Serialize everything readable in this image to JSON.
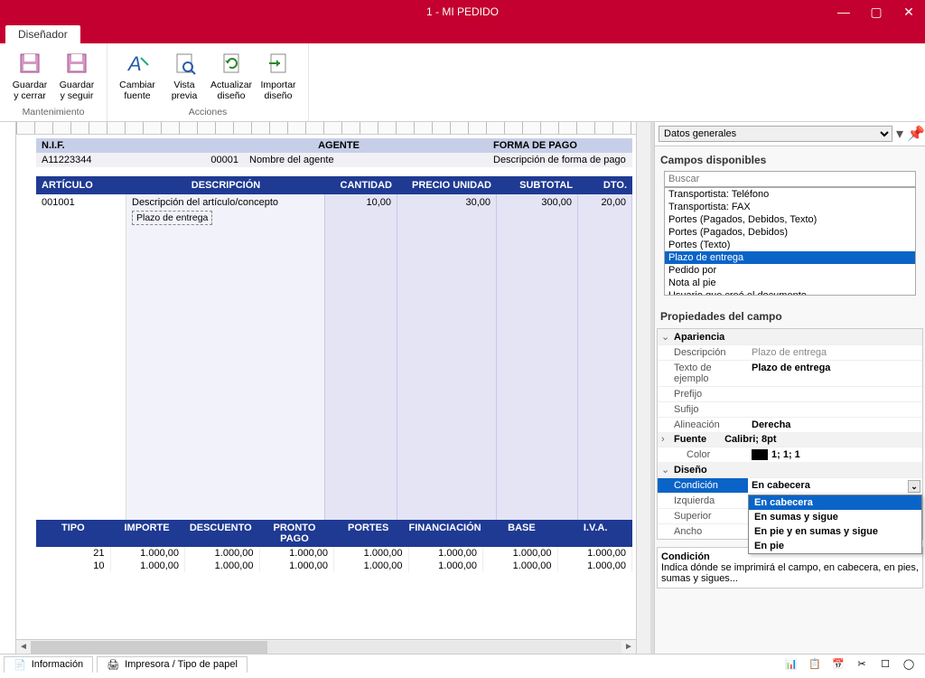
{
  "window": {
    "title": "1 - MI PEDIDO"
  },
  "tab": {
    "label": "Diseñador"
  },
  "ribbon": {
    "groups": [
      {
        "name": "Mantenimiento",
        "buttons": [
          {
            "label": "Guardar\ny cerrar",
            "icon": "save-close"
          },
          {
            "label": "Guardar\ny seguir",
            "icon": "save"
          }
        ]
      },
      {
        "name": "Acciones",
        "buttons": [
          {
            "label": "Cambiar\nfuente",
            "icon": "font"
          },
          {
            "label": "Vista\nprevia",
            "icon": "preview"
          },
          {
            "label": "Actualizar\ndiseño",
            "icon": "refresh-design"
          },
          {
            "label": "Importar\ndiseño",
            "icon": "import-design"
          }
        ]
      }
    ]
  },
  "report": {
    "header_labels": {
      "nif": "N.I.F.",
      "agente": "AGENTE",
      "forma": "FORMA DE PAGO"
    },
    "header_values": {
      "nif": "A11223344",
      "agente_code": "00001",
      "agente_name": "Nombre del agente",
      "forma": "Descripción de forma de pago"
    },
    "cols": {
      "art": "ARTÍCULO",
      "desc": "DESCRIPCIÓN",
      "cant": "CANTIDAD",
      "pu": "PRECIO UNIDAD",
      "sub": "SUBTOTAL",
      "dto": "DTO."
    },
    "row": {
      "art": "001001",
      "desc": "Descripción del artículo/concepto",
      "plazo": "Plazo de entrega",
      "cant": "10,00",
      "pu": "30,00",
      "sub": "300,00",
      "dto": "20,00"
    },
    "footer_cols": [
      "TIPO",
      "IMPORTE",
      "DESCUENTO",
      "PRONTO PAGO",
      "PORTES",
      "FINANCIACIÓN",
      "BASE",
      "I.V.A."
    ],
    "footer_rows": [
      [
        "21",
        "1.000,00",
        "1.000,00",
        "1.000,00",
        "1.000,00",
        "1.000,00",
        "1.000,00",
        "1.000,00"
      ],
      [
        "10",
        "1.000,00",
        "1.000,00",
        "1.000,00",
        "1.000,00",
        "1.000,00",
        "1.000,00",
        "1.000,00"
      ]
    ]
  },
  "side": {
    "combo": "Datos generales",
    "campos_title": "Campos disponibles",
    "search_ph": "Buscar",
    "fields": [
      "Transportista: Teléfono",
      "Transportista: FAX",
      "Portes (Pagados, Debidos, Texto)",
      "Portes (Pagados, Debidos)",
      "Portes (Texto)",
      "Plazo de entrega",
      "Pedido por",
      "Nota al pie",
      "Usuario que creó el documento"
    ],
    "selected_field_index": 5,
    "props_title": "Propiedades del campo",
    "sections": {
      "apariencia": "Apariencia",
      "fuente": "Fuente",
      "color": "Color",
      "diseno": "Diseño"
    },
    "props": {
      "descripcion_l": "Descripción",
      "descripcion_v": "Plazo de entrega",
      "texto_l": "Texto de ejemplo",
      "texto_v": "Plazo de entrega",
      "prefijo_l": "Prefijo",
      "prefijo_v": "",
      "sufijo_l": "Sufijo",
      "sufijo_v": "",
      "alin_l": "Alineación",
      "alin_v": "Derecha",
      "fuente_v": "Calibri; 8pt",
      "color_v": "1; 1; 1",
      "condicion_l": "Condición",
      "condicion_v": "En cabecera",
      "izq_l": "Izquierda",
      "sup_l": "Superior",
      "ancho_l": "Ancho"
    },
    "dd_options": [
      "En cabecera",
      "En sumas y sigue",
      "En pie y en sumas y sigue",
      "En pie"
    ],
    "help": {
      "title": "Condición",
      "text": "Indica dónde se imprimirá el campo, en cabecera, en pies, sumas y sigues..."
    }
  },
  "status": {
    "info": "Información",
    "printer": "Impresora / Tipo de papel"
  },
  "colors": {
    "accent": "#c3002f",
    "table_header": "#1f3a93",
    "header_row": "#c7cfe8",
    "body_tint": "#e4e4f5",
    "selection": "#0a64c8"
  }
}
